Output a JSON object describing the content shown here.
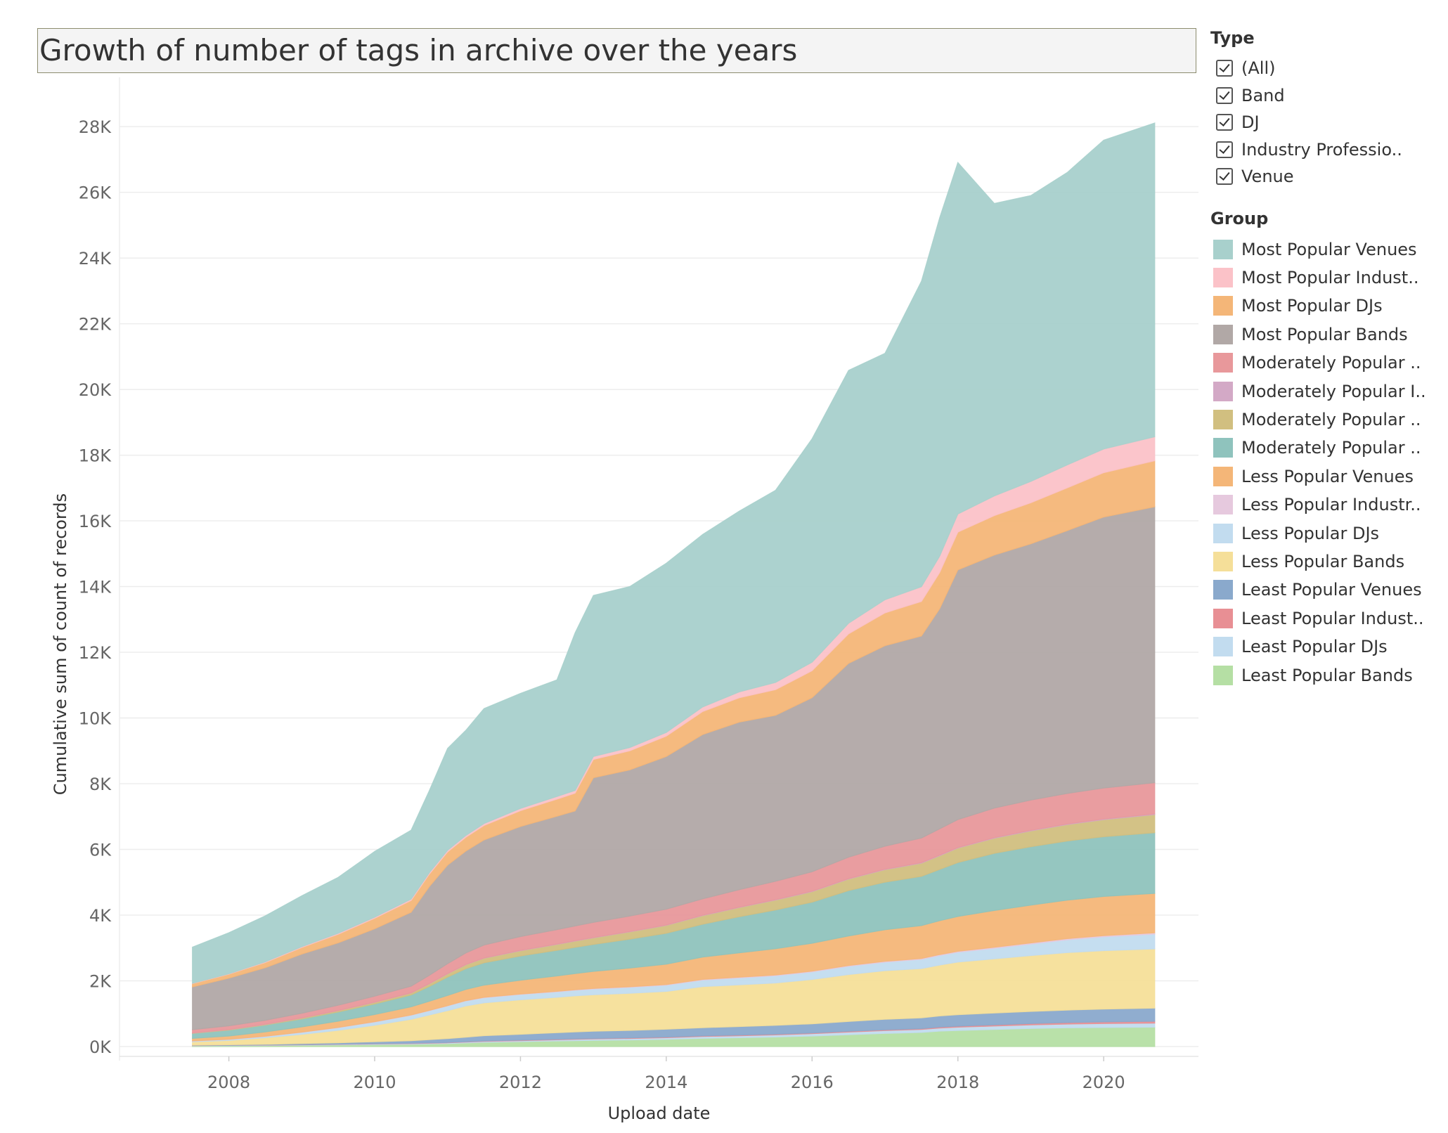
{
  "chart_data": {
    "type": "area",
    "stacked": true,
    "title": "Growth of number of tags in archive over the years",
    "xlabel": "Upload date",
    "ylabel": "Cumulative sum of count of records",
    "x_range": [
      2006.5,
      2021.3
    ],
    "x_ticks": [
      2008,
      2010,
      2012,
      2014,
      2016,
      2018,
      2020
    ],
    "x_tick_labels": [
      "2008",
      "2010",
      "2012",
      "2014",
      "2016",
      "2018",
      "2020"
    ],
    "y_range": [
      -300,
      29500
    ],
    "y_ticks": [
      0,
      2000,
      4000,
      6000,
      8000,
      10000,
      12000,
      14000,
      16000,
      18000,
      20000,
      22000,
      24000,
      26000,
      28000
    ],
    "y_tick_labels": [
      "0K",
      "2K",
      "4K",
      "6K",
      "8K",
      "10K",
      "12K",
      "14K",
      "16K",
      "18K",
      "20K",
      "22K",
      "24K",
      "26K",
      "28K"
    ],
    "grid": "horizontal",
    "x": [
      2007.5,
      2008.0,
      2008.5,
      2009.0,
      2009.5,
      2010.0,
      2010.5,
      2010.75,
      2011.0,
      2011.25,
      2011.5,
      2012.0,
      2012.5,
      2012.75,
      2013.0,
      2013.5,
      2014.0,
      2014.5,
      2015.0,
      2015.5,
      2016.0,
      2016.5,
      2017.0,
      2017.5,
      2017.75,
      2018.0,
      2018.5,
      2019.0,
      2019.5,
      2020.0,
      2020.7
    ],
    "series": [
      {
        "name": "Least Popular Bands",
        "color": "#b5dfa4",
        "values": [
          20,
          25,
          30,
          40,
          50,
          60,
          70,
          80,
          90,
          110,
          130,
          150,
          170,
          180,
          190,
          200,
          220,
          250,
          270,
          290,
          320,
          360,
          400,
          430,
          470,
          490,
          520,
          550,
          570,
          580,
          590
        ]
      },
      {
        "name": "Least Popular DJs",
        "color": "#c2dcef",
        "values": [
          10,
          10,
          12,
          14,
          16,
          18,
          20,
          20,
          22,
          25,
          28,
          30,
          35,
          38,
          40,
          45,
          50,
          55,
          60,
          65,
          70,
          80,
          85,
          90,
          95,
          100,
          105,
          110,
          115,
          120,
          125
        ]
      },
      {
        "name": "Least Popular Industry Professionals",
        "color": "#e88f94",
        "values": [
          5,
          5,
          6,
          7,
          8,
          9,
          10,
          10,
          11,
          12,
          13,
          14,
          15,
          16,
          16,
          17,
          18,
          19,
          20,
          21,
          22,
          23,
          24,
          25,
          27,
          30,
          35,
          40,
          45,
          50,
          55
        ]
      },
      {
        "name": "Least Popular Venues",
        "color": "#8aa9cc",
        "values": [
          10,
          15,
          20,
          30,
          40,
          60,
          80,
          100,
          120,
          140,
          160,
          180,
          200,
          210,
          220,
          230,
          240,
          250,
          260,
          270,
          280,
          300,
          320,
          330,
          340,
          350,
          360,
          370,
          380,
          390,
          400
        ]
      },
      {
        "name": "Less Popular Bands",
        "color": "#f5df99",
        "values": [
          100,
          130,
          200,
          280,
          380,
          500,
          650,
          750,
          850,
          950,
          1000,
          1050,
          1080,
          1100,
          1110,
          1130,
          1150,
          1250,
          1270,
          1290,
          1350,
          1430,
          1480,
          1500,
          1550,
          1600,
          1650,
          1700,
          1750,
          1780,
          1800
        ]
      },
      {
        "name": "Less Popular DJs",
        "color": "#c2dcef",
        "values": [
          20,
          30,
          40,
          60,
          80,
          100,
          120,
          130,
          140,
          150,
          155,
          160,
          165,
          170,
          175,
          180,
          190,
          200,
          210,
          220,
          230,
          250,
          260,
          280,
          290,
          300,
          320,
          350,
          390,
          420,
          450
        ]
      },
      {
        "name": "Less Popular Industry Professionals",
        "color": "#e6c9de",
        "values": [
          5,
          5,
          6,
          7,
          8,
          9,
          10,
          10,
          11,
          12,
          13,
          14,
          15,
          16,
          17,
          18,
          19,
          20,
          21,
          22,
          23,
          24,
          25,
          26,
          28,
          30,
          32,
          34,
          36,
          38,
          40
        ]
      },
      {
        "name": "Less Popular Venues",
        "color": "#f4b678",
        "values": [
          80,
          100,
          130,
          160,
          190,
          220,
          250,
          280,
          310,
          340,
          370,
          420,
          470,
          490,
          520,
          570,
          620,
          680,
          740,
          800,
          850,
          900,
          960,
          1000,
          1030,
          1060,
          1120,
          1150,
          1170,
          1190,
          1200
        ]
      },
      {
        "name": "Moderately Popular Venues",
        "color": "#8fc3bd",
        "values": [
          150,
          180,
          210,
          240,
          280,
          320,
          360,
          450,
          560,
          630,
          680,
          740,
          780,
          800,
          820,
          880,
          940,
          1000,
          1100,
          1180,
          1250,
          1380,
          1450,
          1500,
          1560,
          1640,
          1740,
          1780,
          1800,
          1820,
          1850
        ]
      },
      {
        "name": "Moderately Popular DJs",
        "color": "#d1bf80",
        "values": [
          10,
          15,
          20,
          30,
          40,
          50,
          60,
          80,
          100,
          120,
          140,
          160,
          180,
          190,
          200,
          220,
          240,
          260,
          280,
          300,
          320,
          350,
          380,
          400,
          420,
          440,
          460,
          480,
          500,
          520,
          550
        ]
      },
      {
        "name": "Moderately Popular Industry Professionals",
        "color": "#d3a9c6",
        "values": [
          5,
          5,
          5,
          6,
          6,
          7,
          7,
          8,
          8,
          9,
          9,
          10,
          10,
          11,
          11,
          12,
          12,
          13,
          13,
          14,
          14,
          15,
          15,
          16,
          16,
          17,
          17,
          18,
          18,
          19,
          20
        ]
      },
      {
        "name": "Moderately Popular Bands",
        "color": "#e8989b",
        "values": [
          100,
          110,
          120,
          140,
          160,
          180,
          200,
          250,
          300,
          350,
          390,
          420,
          440,
          450,
          460,
          470,
          480,
          500,
          530,
          560,
          590,
          650,
          700,
          750,
          800,
          850,
          900,
          920,
          930,
          940,
          950
        ]
      },
      {
        "name": "Most Popular Bands",
        "color": "#b1a8a6",
        "values": [
          1300,
          1450,
          1600,
          1800,
          1900,
          2050,
          2250,
          2700,
          3000,
          3100,
          3200,
          3350,
          3450,
          3500,
          4400,
          4450,
          4650,
          5000,
          5100,
          5050,
          5300,
          5900,
          6100,
          6150,
          6700,
          7600,
          7700,
          7800,
          8000,
          8250,
          8400
        ]
      },
      {
        "name": "Most Popular DJs",
        "color": "#f4b678",
        "values": [
          100,
          120,
          160,
          200,
          260,
          320,
          360,
          380,
          400,
          420,
          440,
          480,
          520,
          540,
          560,
          580,
          620,
          700,
          740,
          780,
          820,
          900,
          1000,
          1050,
          1100,
          1150,
          1200,
          1250,
          1300,
          1350,
          1400
        ]
      },
      {
        "name": "Most Popular Industry Professionals",
        "color": "#fbc2c8",
        "values": [
          10,
          15,
          20,
          25,
          30,
          35,
          40,
          45,
          50,
          55,
          60,
          70,
          80,
          85,
          90,
          100,
          110,
          140,
          180,
          220,
          260,
          320,
          400,
          450,
          500,
          550,
          600,
          650,
          700,
          720,
          730
        ]
      },
      {
        "name": "Most Popular Venues",
        "color": "#a8d0cc",
        "values": [
          1100,
          1250,
          1400,
          1550,
          1700,
          2000,
          2100,
          2500,
          3100,
          3200,
          3500,
          3500,
          3550,
          4800,
          4900,
          4900,
          5150,
          5250,
          5500,
          5850,
          6800,
          7700,
          7500,
          9300,
          10300,
          10700,
          8900,
          8700,
          8900,
          9400,
          9550
        ]
      }
    ]
  },
  "title": "Growth of number of tags in archive over the years",
  "filter": {
    "heading": "Type",
    "items": [
      "(All)",
      "Band",
      "DJ",
      "Industry Professio..",
      "Venue"
    ]
  },
  "legend": {
    "heading": "Group",
    "items": [
      {
        "label": "Most Popular Venues",
        "color": "#a8d0cc"
      },
      {
        "label": "Most Popular Indust..",
        "color": "#fbc2c8"
      },
      {
        "label": "Most Popular DJs",
        "color": "#f4b678"
      },
      {
        "label": "Most Popular Bands",
        "color": "#b1a8a6"
      },
      {
        "label": "Moderately Popular ..",
        "color": "#e8989b"
      },
      {
        "label": "Moderately Popular I..",
        "color": "#d3a9c6"
      },
      {
        "label": "Moderately Popular ..",
        "color": "#d1bf80"
      },
      {
        "label": "Moderately Popular ..",
        "color": "#8fc3bd"
      },
      {
        "label": "Less Popular Venues",
        "color": "#f4b678"
      },
      {
        "label": "Less Popular Industr..",
        "color": "#e6c9de"
      },
      {
        "label": "Less Popular DJs",
        "color": "#c2dcef"
      },
      {
        "label": "Less Popular Bands",
        "color": "#f5df99"
      },
      {
        "label": "Least Popular Venues",
        "color": "#8aa9cc"
      },
      {
        "label": "Least Popular Indust..",
        "color": "#e88f94"
      },
      {
        "label": "Least Popular DJs",
        "color": "#c2dcef"
      },
      {
        "label": "Least Popular Bands",
        "color": "#b5dfa4"
      }
    ]
  }
}
